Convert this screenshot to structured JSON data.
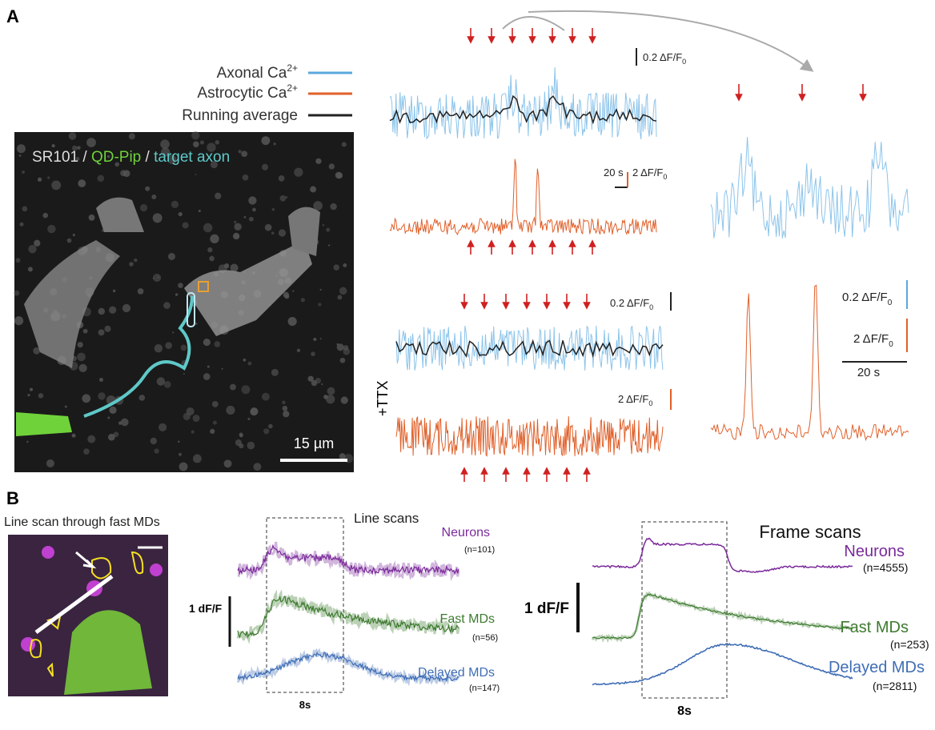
{
  "panel_a": {
    "label": "A",
    "legend": [
      {
        "text": "Axonal Ca",
        "sup": "2+"
      },
      {
        "text": "Astrocytic Ca",
        "sup": "2+"
      },
      {
        "text": "Running average"
      }
    ],
    "image_caption": [
      "SR101",
      " / ",
      "QD-Pip",
      " / ",
      "target axon"
    ],
    "image_scale": "15 µm",
    "top_axonal_scale": {
      "main": "0.2 ΔF/F",
      "sub": "0"
    },
    "top_time_scale": "20 s",
    "top_astro_scale": {
      "main": "2 ΔF/F",
      "sub": "0"
    },
    "zoom_axonal_scale": {
      "main": "0.2 ΔF/F",
      "sub": "0"
    },
    "zoom_astro_scale": {
      "main": "2 ΔF/F",
      "sub": "0"
    },
    "zoom_time_scale": "20 s",
    "ttx_label": "+TTX",
    "ttx_axonal_scale": {
      "main": "0.2 ΔF/F",
      "sub": "0"
    },
    "ttx_astro_scale": {
      "main": "2 ΔF/F",
      "sub": "0"
    }
  },
  "panel_b": {
    "label": "B",
    "image_title": "Line scan through fast MDs",
    "line_scans": {
      "title": "Line scans",
      "groups": [
        {
          "name": "Neurons",
          "n": "(n=101)"
        },
        {
          "name": "Fast MDs",
          "n": "(n=56)"
        },
        {
          "name": "Delayed MDs",
          "n": "(n=147)"
        }
      ],
      "amplitude_scale": "1 dF/F",
      "time_scale": "8s"
    },
    "frame_scans": {
      "title": "Frame scans",
      "groups": [
        {
          "name": "Neurons",
          "n": "(n=4555)"
        },
        {
          "name": "Fast MDs",
          "n": "(n=253)"
        },
        {
          "name": "Delayed MDs",
          "n": "(n=2811)"
        }
      ],
      "amplitude_scale": "1 dF/F",
      "time_scale": "8s"
    }
  }
}
